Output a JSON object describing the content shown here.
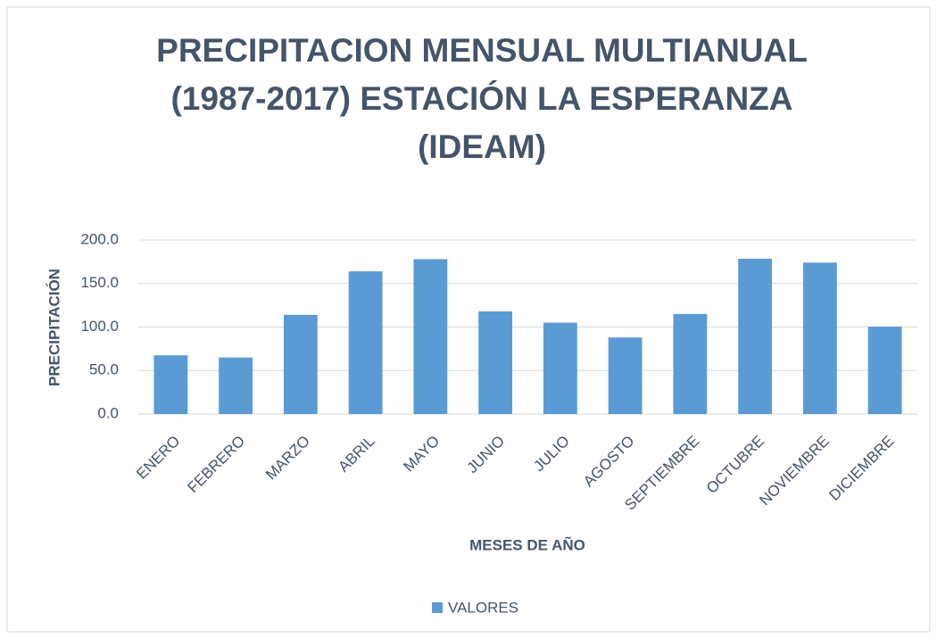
{
  "chart_data": {
    "type": "bar",
    "title": "PRECIPITACION MENSUAL MULTIANUAL (1987-2017) ESTACIÓN LA ESPERANZA (IDEAM)",
    "x_label": "MESES DE AÑO",
    "y_label": "PRECIPITACIÓN",
    "categories": [
      "ENERO",
      "FEBRERO",
      "MARZO",
      "ABRIL",
      "MAYO",
      "JUNIO",
      "JULIO",
      "AGOSTO",
      "SEPTIEMBRE",
      "OCTUBRE",
      "NOVIEMBRE",
      "DICIEMBRE"
    ],
    "series": [
      {
        "name": "VALORES",
        "color": "#5b9bd5",
        "values": [
          67.5,
          65,
          114,
          164,
          178,
          118,
          105,
          88,
          115,
          178.5,
          174,
          100.5
        ]
      }
    ],
    "ylim": [
      0,
      200
    ],
    "yticks": [
      {
        "value": 0,
        "label": "0.0"
      },
      {
        "value": 50,
        "label": "50.0"
      },
      {
        "value": 100,
        "label": "100.0"
      },
      {
        "value": 150,
        "label": "150.0"
      },
      {
        "value": 200,
        "label": "200.0"
      }
    ],
    "grid": true,
    "legend": "bottom"
  }
}
